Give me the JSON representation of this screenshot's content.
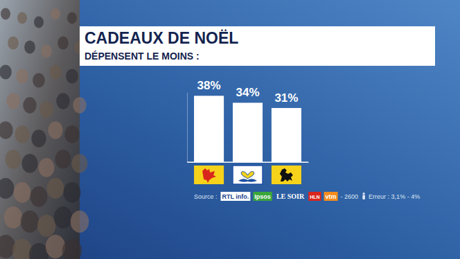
{
  "chart_data": {
    "type": "bar",
    "title": "CADEAUX DE NOËL",
    "subtitle": "DÉPENSENT LE MOINS :",
    "categories": [
      null,
      null,
      null
    ],
    "values": [
      38,
      34,
      31
    ],
    "value_labels": [
      "38%",
      "34%",
      "31%"
    ],
    "color": "#ffffff",
    "ylim": [
      0,
      40
    ],
    "yticks": [
      0
    ],
    "tick_labels": false,
    "data_labels": true,
    "source": {
      "label": "Source :",
      "logos": [
        "RTL info.",
        "Ipsos",
        "LE SOIR",
        "HLN",
        "vtm"
      ],
      "sample": "- 2600",
      "error": "Erreur : 3,1% - 4%"
    }
  }
}
